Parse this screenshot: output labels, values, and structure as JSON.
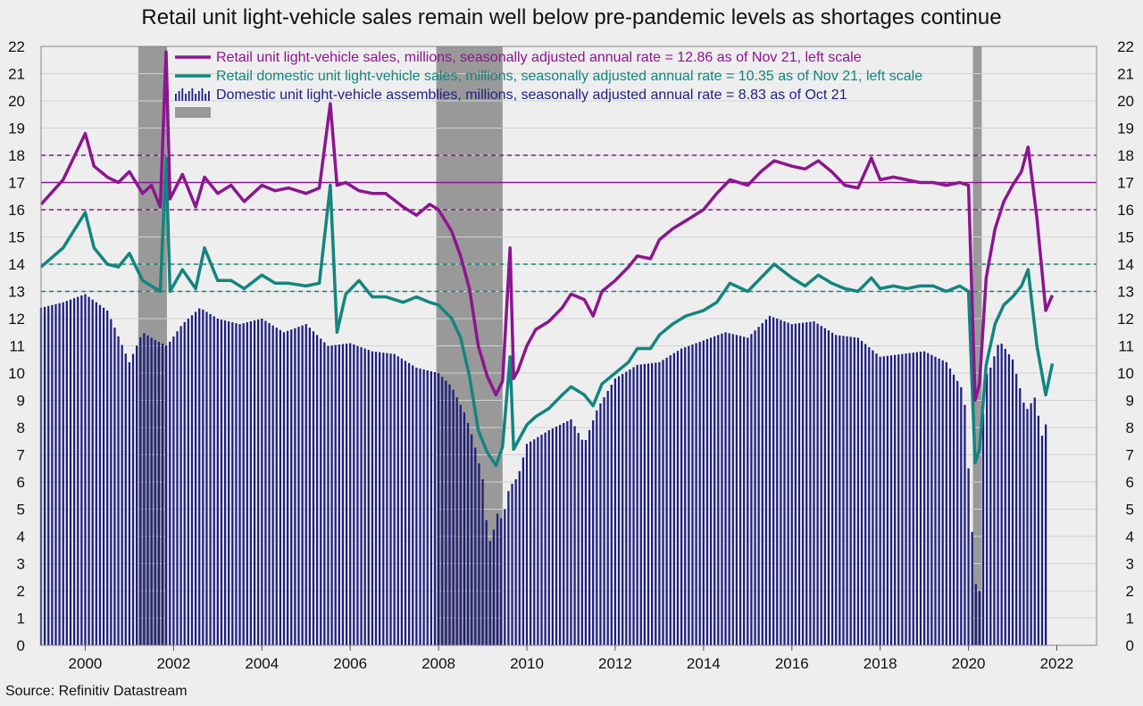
{
  "title": "Retail unit light-vehicle sales remain well below pre-pandemic levels as shortages continue",
  "source": "Source: Refinitiv Datastream",
  "colors": {
    "retail_total": "#8B168F",
    "retail_domestic": "#13857F",
    "assemblies": "#1F1F7F",
    "recession": "#999999",
    "background": "#eeeeee"
  },
  "chart_data": {
    "type": "line",
    "xlim": [
      1999.0,
      2022.9
    ],
    "ylim": [
      0,
      22
    ],
    "y_ticks": [
      0,
      1,
      2,
      3,
      4,
      5,
      6,
      7,
      8,
      9,
      10,
      11,
      12,
      13,
      14,
      15,
      16,
      17,
      18,
      19,
      20,
      21,
      22
    ],
    "x_tick_labels": [
      "2000",
      "2002",
      "2004",
      "2006",
      "2008",
      "2010",
      "2012",
      "2014",
      "2016",
      "2018",
      "2020",
      "2022"
    ],
    "x_tick_values": [
      2000,
      2002,
      2004,
      2006,
      2008,
      2010,
      2012,
      2014,
      2016,
      2018,
      2020,
      2022
    ],
    "grid": true,
    "legend_position": "top-left",
    "recessions": [
      {
        "start": 2001.2,
        "end": 2001.85
      },
      {
        "start": 2007.95,
        "end": 2009.45
      },
      {
        "start": 2020.1,
        "end": 2020.3
      }
    ],
    "reference_lines": [
      {
        "y": 17,
        "style": "solid",
        "series": "retail_total"
      },
      {
        "y": 16,
        "style": "dashed",
        "series": "retail_total"
      },
      {
        "y": 18,
        "style": "dashed",
        "series": "retail_total"
      },
      {
        "y": 13,
        "style": "dashed",
        "series": "retail_domestic"
      },
      {
        "y": 14,
        "style": "dashed",
        "series": "retail_domestic"
      }
    ],
    "series": [
      {
        "id": "retail_total",
        "name": "Retail unit light-vehicle sales, millions, seasonally adjusted annual rate = 12.86 as of Nov 21, left scale",
        "kind": "line",
        "x": [
          1999.0,
          1999.5,
          2000.0,
          2000.2,
          2000.5,
          2000.75,
          2001.0,
          2001.3,
          2001.5,
          2001.7,
          2001.83,
          2001.92,
          2002.2,
          2002.5,
          2002.7,
          2003.0,
          2003.3,
          2003.6,
          2004.0,
          2004.3,
          2004.6,
          2005.0,
          2005.3,
          2005.55,
          2005.7,
          2005.9,
          2006.2,
          2006.5,
          2006.8,
          2007.2,
          2007.5,
          2007.8,
          2008.0,
          2008.3,
          2008.5,
          2008.7,
          2008.9,
          2009.1,
          2009.3,
          2009.45,
          2009.62,
          2009.7,
          2009.8,
          2010.0,
          2010.2,
          2010.5,
          2010.8,
          2011.0,
          2011.3,
          2011.5,
          2011.7,
          2012.0,
          2012.3,
          2012.5,
          2012.8,
          2013.0,
          2013.3,
          2013.6,
          2014.0,
          2014.3,
          2014.6,
          2015.0,
          2015.3,
          2015.6,
          2016.0,
          2016.3,
          2016.6,
          2016.9,
          2017.2,
          2017.5,
          2017.8,
          2018.0,
          2018.3,
          2018.6,
          2018.9,
          2019.2,
          2019.5,
          2019.8,
          2020.0,
          2020.15,
          2020.25,
          2020.4,
          2020.6,
          2020.8,
          2021.0,
          2021.2,
          2021.35,
          2021.55,
          2021.75,
          2021.9
        ],
        "y": [
          16.2,
          17.1,
          18.8,
          17.6,
          17.2,
          17.0,
          17.4,
          16.6,
          16.9,
          16.1,
          21.8,
          16.4,
          17.3,
          16.1,
          17.2,
          16.6,
          16.9,
          16.3,
          16.9,
          16.7,
          16.8,
          16.6,
          16.8,
          19.9,
          16.9,
          17.0,
          16.7,
          16.6,
          16.6,
          16.1,
          15.8,
          16.2,
          16.0,
          15.2,
          14.3,
          13.1,
          11.0,
          9.9,
          9.2,
          9.7,
          14.6,
          9.8,
          10.1,
          11.0,
          11.6,
          11.9,
          12.4,
          12.9,
          12.7,
          12.1,
          13.0,
          13.4,
          13.9,
          14.3,
          14.2,
          14.9,
          15.3,
          15.6,
          16.0,
          16.6,
          17.1,
          16.9,
          17.4,
          17.8,
          17.6,
          17.5,
          17.8,
          17.4,
          16.9,
          16.8,
          17.9,
          17.1,
          17.2,
          17.1,
          17.0,
          17.0,
          16.9,
          17.0,
          16.9,
          9.0,
          9.6,
          13.5,
          15.3,
          16.3,
          16.9,
          17.4,
          18.3,
          15.7,
          12.3,
          12.86
        ]
      },
      {
        "id": "retail_domestic",
        "name": "Retail domestic unit light-vehicle sales, millions, seasonally adjusted annual rate = 10.35 as of Nov 21, left scale",
        "kind": "line",
        "x": [
          1999.0,
          1999.5,
          2000.0,
          2000.2,
          2000.5,
          2000.75,
          2001.0,
          2001.3,
          2001.5,
          2001.7,
          2001.83,
          2001.92,
          2002.2,
          2002.5,
          2002.7,
          2003.0,
          2003.3,
          2003.6,
          2004.0,
          2004.3,
          2004.6,
          2005.0,
          2005.3,
          2005.55,
          2005.7,
          2005.9,
          2006.2,
          2006.5,
          2006.8,
          2007.2,
          2007.5,
          2007.8,
          2008.0,
          2008.3,
          2008.5,
          2008.7,
          2008.9,
          2009.1,
          2009.3,
          2009.45,
          2009.62,
          2009.7,
          2009.8,
          2010.0,
          2010.2,
          2010.5,
          2010.8,
          2011.0,
          2011.3,
          2011.5,
          2011.7,
          2012.0,
          2012.3,
          2012.5,
          2012.8,
          2013.0,
          2013.3,
          2013.6,
          2014.0,
          2014.3,
          2014.6,
          2015.0,
          2015.3,
          2015.6,
          2016.0,
          2016.3,
          2016.6,
          2016.9,
          2017.2,
          2017.5,
          2017.8,
          2018.0,
          2018.3,
          2018.6,
          2018.9,
          2019.2,
          2019.5,
          2019.8,
          2020.0,
          2020.15,
          2020.25,
          2020.4,
          2020.6,
          2020.8,
          2021.0,
          2021.2,
          2021.35,
          2021.55,
          2021.75,
          2021.9
        ],
        "y": [
          13.9,
          14.6,
          15.9,
          14.6,
          14.0,
          13.9,
          14.4,
          13.4,
          13.2,
          13.0,
          17.9,
          13.0,
          13.8,
          13.1,
          14.6,
          13.4,
          13.4,
          13.1,
          13.6,
          13.3,
          13.3,
          13.2,
          13.3,
          16.9,
          11.5,
          12.9,
          13.4,
          12.8,
          12.8,
          12.6,
          12.8,
          12.6,
          12.5,
          12.0,
          11.3,
          9.9,
          7.9,
          7.1,
          6.6,
          7.3,
          10.6,
          7.2,
          7.5,
          8.1,
          8.4,
          8.7,
          9.2,
          9.5,
          9.2,
          8.8,
          9.6,
          10.0,
          10.4,
          10.9,
          10.9,
          11.4,
          11.8,
          12.1,
          12.3,
          12.6,
          13.3,
          13.0,
          13.5,
          14.0,
          13.5,
          13.2,
          13.6,
          13.3,
          13.1,
          13.0,
          13.5,
          13.1,
          13.2,
          13.1,
          13.2,
          13.2,
          13.0,
          13.2,
          13.0,
          6.7,
          7.2,
          10.3,
          11.8,
          12.5,
          12.8,
          13.2,
          13.8,
          11.0,
          9.2,
          10.35
        ]
      },
      {
        "id": "assemblies",
        "name": "Domestic unit light-vehicle assemblies, millions, seasonally adjusted annual rate = 8.83 as of Oct 21",
        "kind": "bar",
        "x": [
          1999.0,
          1999.5,
          2000.0,
          2000.5,
          2001.0,
          2001.3,
          2001.6,
          2001.85,
          2002.2,
          2002.6,
          2003.0,
          2003.5,
          2004.0,
          2004.5,
          2005.0,
          2005.5,
          2006.0,
          2006.5,
          2007.0,
          2007.5,
          2008.0,
          2008.3,
          2008.6,
          2008.8,
          2009.0,
          2009.1,
          2009.2,
          2009.3,
          2009.45,
          2009.6,
          2009.8,
          2010.0,
          2010.5,
          2011.0,
          2011.3,
          2011.6,
          2012.0,
          2012.5,
          2013.0,
          2013.5,
          2014.0,
          2014.5,
          2015.0,
          2015.5,
          2016.0,
          2016.5,
          2017.0,
          2017.5,
          2018.0,
          2018.5,
          2019.0,
          2019.5,
          2019.9,
          2020.15,
          2020.25,
          2020.35,
          2020.5,
          2020.7,
          2021.0,
          2021.3,
          2021.5,
          2021.6,
          2021.7,
          2021.8
        ],
        "y": [
          12.4,
          12.6,
          12.9,
          12.3,
          10.4,
          11.5,
          11.2,
          11.0,
          11.8,
          12.4,
          12.0,
          11.8,
          12.0,
          11.5,
          11.8,
          11.0,
          11.1,
          10.8,
          10.7,
          10.2,
          10.0,
          9.5,
          8.5,
          7.5,
          6.1,
          4.3,
          3.6,
          4.9,
          4.6,
          5.8,
          6.2,
          7.4,
          7.9,
          8.3,
          7.4,
          8.7,
          9.8,
          10.3,
          10.4,
          10.9,
          11.2,
          11.5,
          11.3,
          12.1,
          11.8,
          11.9,
          11.4,
          11.3,
          10.6,
          10.7,
          10.8,
          10.4,
          9.3,
          2.3,
          2.0,
          9.8,
          10.2,
          11.2,
          10.5,
          8.6,
          9.1,
          8.3,
          7.4,
          8.83
        ]
      }
    ]
  }
}
